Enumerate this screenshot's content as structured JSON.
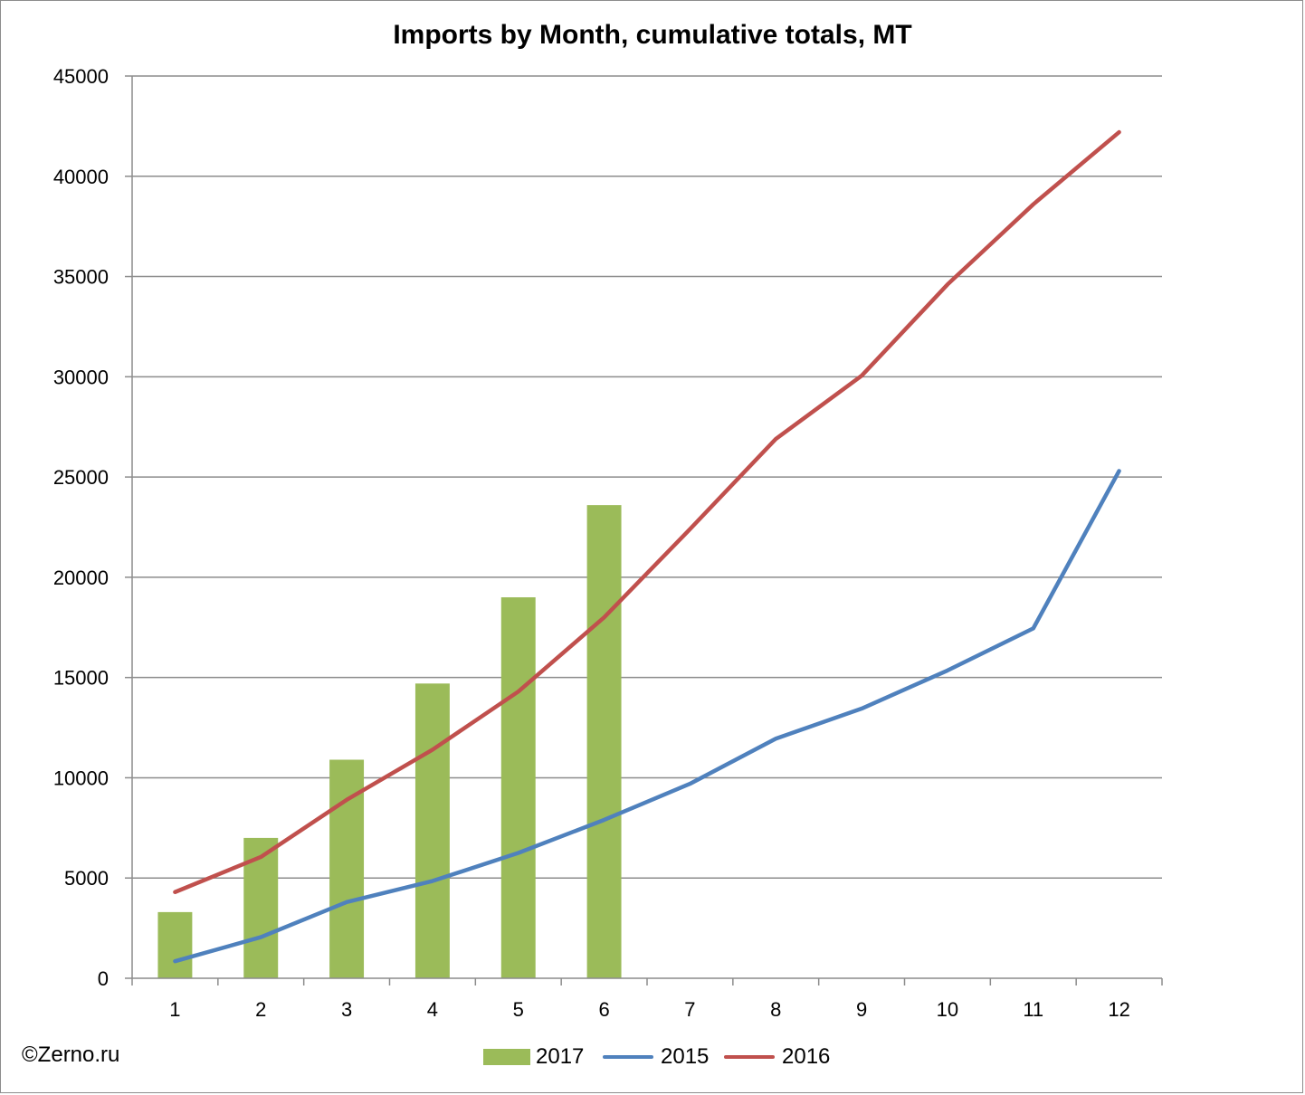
{
  "chart_data": {
    "type": "bar+line",
    "title": "Imports by Month, cumulative totals, MT",
    "xlabel": "",
    "ylabel": "",
    "categories": [
      "1",
      "2",
      "3",
      "4",
      "5",
      "6",
      "7",
      "8",
      "9",
      "10",
      "11",
      "12"
    ],
    "ylim": [
      0,
      45000
    ],
    "yticks": [
      0,
      5000,
      10000,
      15000,
      20000,
      25000,
      30000,
      35000,
      40000,
      45000
    ],
    "grid": true,
    "legend_position": "bottom",
    "series": [
      {
        "name": "2017",
        "kind": "bar",
        "color": "#9bbb59",
        "values": [
          3300,
          7000,
          10900,
          14700,
          19000,
          23600,
          null,
          null,
          null,
          null,
          null,
          null
        ]
      },
      {
        "name": "2015",
        "kind": "line",
        "color": "#4f81bd",
        "values": [
          850,
          2050,
          3800,
          4850,
          6250,
          7900,
          9700,
          11950,
          13450,
          15350,
          17450,
          25300
        ]
      },
      {
        "name": "2016",
        "kind": "line",
        "color": "#c0504d",
        "values": [
          4300,
          6050,
          8900,
          11400,
          14300,
          18000,
          22400,
          26900,
          30050,
          34600,
          38600,
          42200
        ]
      }
    ]
  },
  "credit": "©Zerno.ru"
}
